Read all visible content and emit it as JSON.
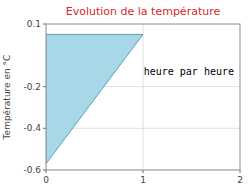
{
  "chart_data": {
    "type": "polygon",
    "title": "Evolution de la température",
    "ylabel": "Température en °C",
    "annotation": "heure par heure",
    "x": [
      0,
      0,
      1
    ],
    "values": [
      0.05,
      -0.57,
      0.05
    ],
    "color": "#a8d8e8",
    "xlim": [
      0,
      2
    ],
    "ylim": [
      -0.6,
      0.1
    ],
    "xticks": [
      0,
      1,
      2
    ],
    "yticks": [
      0.1,
      -0.2,
      -0.4,
      -0.6
    ],
    "grid": true
  }
}
